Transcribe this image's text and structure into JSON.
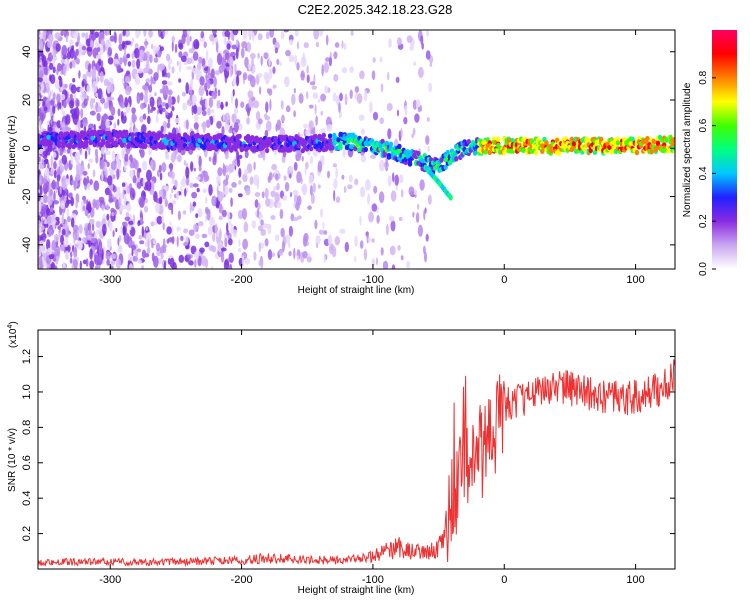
{
  "title": "C2E2.2025.342.18.23.G28",
  "chart_data": [
    {
      "type": "heatmap",
      "xlabel": "Height of straight line (km)",
      "ylabel": "Frequency (Hz)",
      "xlim": [
        -355,
        130
      ],
      "ylim": [
        -50,
        49
      ],
      "xticks": [
        -300,
        -200,
        -100,
        0,
        100
      ],
      "yticks": [
        -40,
        -20,
        0,
        20,
        40
      ],
      "colorbar": {
        "label": "Normalized spectral amplitude",
        "range": [
          0.0,
          1.0
        ],
        "ticks": [
          0.0,
          0.2,
          0.4,
          0.6,
          0.8
        ],
        "colors": [
          "#ffffff",
          "#c9a6f0",
          "#8a2be2",
          "#2020ff",
          "#00c8ff",
          "#00ff80",
          "#40ff00",
          "#ffff00",
          "#ff8000",
          "#ff0000",
          "#ff0060"
        ]
      },
      "ridge": {
        "x": [
          -355,
          -300,
          -250,
          -200,
          -150,
          -120,
          -100,
          -80,
          -65,
          -50,
          -40,
          -30,
          -20,
          0,
          50,
          100,
          130
        ],
        "y": [
          3,
          4,
          3,
          2,
          2,
          3,
          1,
          -2,
          -5,
          -8,
          -3,
          0,
          1,
          1,
          1,
          1,
          2
        ]
      },
      "branch": {
        "x": [
          -60,
          -50,
          -40
        ],
        "y": [
          -8,
          -14,
          -21
        ]
      }
    },
    {
      "type": "line",
      "xlabel": "Height of straight line (km)",
      "ylabel": "SNR (10 * v/v)",
      "multiplier": "(x10",
      "multiplier_exp": "4",
      "multiplier_close": ")",
      "xlim": [
        -355,
        130
      ],
      "ylim": [
        0,
        1.35
      ],
      "xticks": [
        -300,
        -200,
        -100,
        0,
        100
      ],
      "yticks": [
        0.2,
        0.4,
        0.6,
        0.8,
        1.0,
        1.2
      ],
      "ytick_labels": [
        "0.2",
        "0.4",
        "0.6",
        "0.8",
        "1.0",
        "1.2"
      ],
      "color": "#ee3030",
      "series": [
        {
          "name": "SNR",
          "x": [
            -355,
            -300,
            -250,
            -200,
            -180,
            -150,
            -120,
            -100,
            -90,
            -80,
            -70,
            -60,
            -50,
            -45,
            -40,
            -35,
            -30,
            -25,
            -20,
            -15,
            -10,
            -5,
            0,
            10,
            20,
            30,
            40,
            50,
            60,
            70,
            80,
            90,
            100,
            110,
            120,
            130
          ],
          "y": [
            0.04,
            0.04,
            0.04,
            0.05,
            0.06,
            0.05,
            0.05,
            0.07,
            0.1,
            0.12,
            0.1,
            0.09,
            0.12,
            0.2,
            0.35,
            0.5,
            0.62,
            0.6,
            0.66,
            0.68,
            0.72,
            0.8,
            0.92,
            0.95,
            0.98,
            1.02,
            1.04,
            1.02,
            1.0,
            0.98,
            0.97,
            0.96,
            0.97,
            0.99,
            1.02,
            1.1
          ]
        }
      ]
    }
  ]
}
